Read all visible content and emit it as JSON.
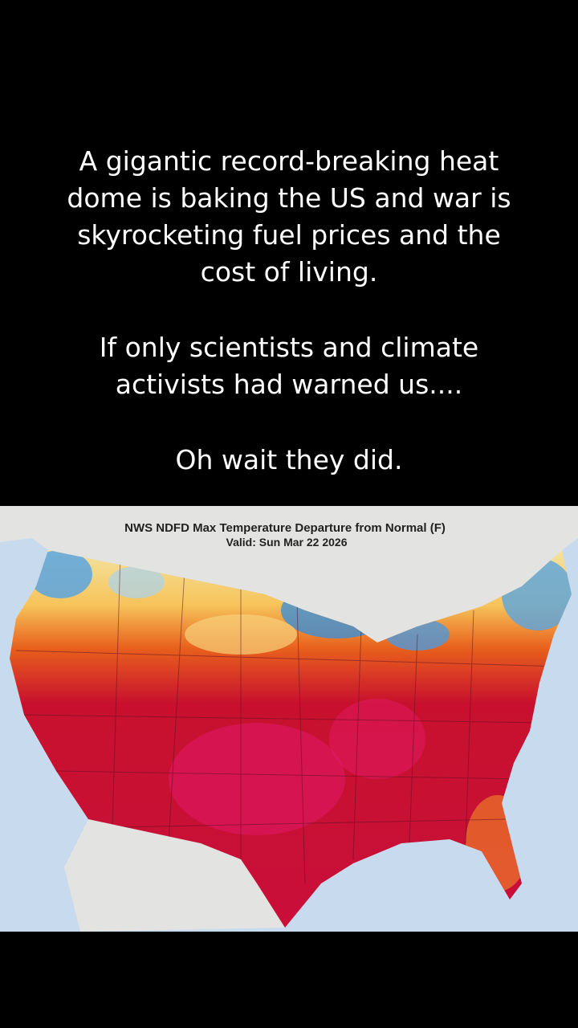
{
  "caption": {
    "paragraphs": [
      [
        "A gigantic record-breaking heat",
        "dome is baking the US and war is",
        "skyrocketing fuel prices and the",
        "cost of living."
      ],
      [
        "If only scientists and climate",
        "activists had warned us...."
      ],
      [
        "Oh wait they did."
      ]
    ]
  },
  "map": {
    "title": "NWS NDFD Max Temperature Departure from Normal (F)",
    "valid": "Valid: Sun Mar 22 2026"
  }
}
